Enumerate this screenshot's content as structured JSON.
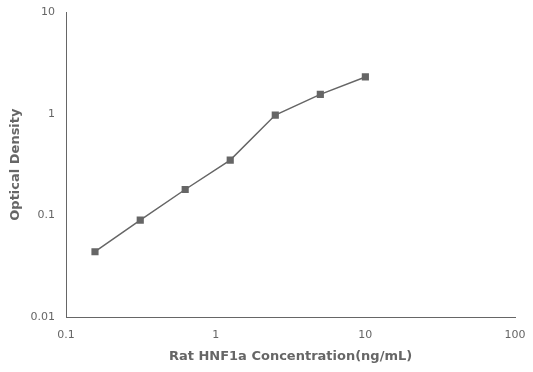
{
  "chart_data": {
    "type": "line",
    "x": [
      0.156,
      0.313,
      0.625,
      1.25,
      2.5,
      5.0,
      10.0
    ],
    "values": [
      0.044,
      0.09,
      0.18,
      0.35,
      0.97,
      1.55,
      2.3
    ],
    "xlabel": "Rat HNF1a Concentration(ng/mL)",
    "ylabel": "Optical Density",
    "xlim": [
      0.1,
      100
    ],
    "ylim": [
      0.01,
      10
    ],
    "xticks": [
      0.1,
      1,
      10,
      100
    ],
    "yticks": [
      0.01,
      0.1,
      1,
      10
    ],
    "log": true,
    "grid": false,
    "color": "#666666",
    "marker": "square"
  }
}
